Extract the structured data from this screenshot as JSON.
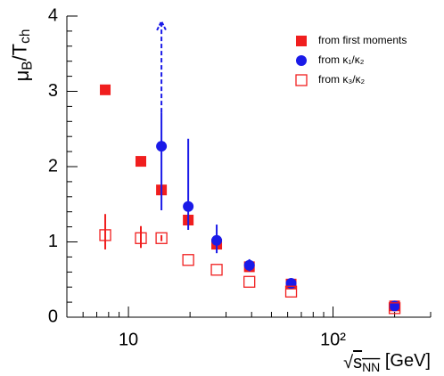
{
  "chart_data": {
    "type": "scatter",
    "ylabel": [
      {
        "text": "μ"
      },
      {
        "text": "B",
        "sub": true
      },
      {
        "text": "/T"
      },
      {
        "text": "ch",
        "sub": true
      }
    ],
    "xlabel": [
      {
        "text": "√"
      },
      {
        "text": "s",
        "over": true
      },
      {
        "text": "NN",
        "sub": true,
        "over": true
      },
      {
        "text": " [GeV]"
      }
    ],
    "log_x": true,
    "xlim": [
      5,
      300
    ],
    "ylim": [
      0,
      4
    ],
    "xticks": [
      10,
      {
        "value": 100,
        "label": "10²"
      }
    ],
    "xminorticks": [
      5,
      6,
      7,
      8,
      9,
      20,
      30,
      40,
      50,
      60,
      70,
      80,
      90,
      200,
      300
    ],
    "yticks": [
      0,
      1,
      2,
      3,
      4
    ],
    "yminorticks": [
      0.2,
      0.4,
      0.6,
      0.8,
      1.2,
      1.4,
      1.6,
      1.8,
      2.2,
      2.4,
      2.6,
      2.8,
      3.2,
      3.4,
      3.6,
      3.8
    ],
    "legend": "upper right",
    "series": [
      {
        "name": "from first moments",
        "color": "#f01e1e",
        "marker": "square",
        "filled": true,
        "x": [
          7.7,
          11.5,
          14.5,
          19.6,
          27,
          39,
          62.4,
          200
        ],
        "values": [
          3.02,
          2.07,
          1.69,
          1.29,
          0.97,
          0.67,
          0.44,
          0.15
        ]
      },
      {
        "name": "from κ₁/κ₂",
        "color": "#1a1ae8",
        "marker": "circle",
        "filled": true,
        "x": [
          14.5,
          19.6,
          27,
          39,
          62.4,
          200
        ],
        "values": [
          2.27,
          1.47,
          1.02,
          0.69,
          0.45,
          0.15
        ],
        "err_low": [
          1.42,
          1.16,
          0.85,
          0.61,
          0.39,
          0.12
        ],
        "err_high": [
          2.72,
          2.37,
          1.23,
          0.77,
          0.51,
          0.18
        ],
        "arrow": {
          "x": 14.5,
          "from": 2.72,
          "to": 3.93
        }
      },
      {
        "name": "from κ₃/κ₂",
        "color": "#f01e1e",
        "marker": "square",
        "filled": false,
        "x": [
          7.7,
          11.5,
          14.5,
          19.6,
          27,
          39,
          62.4,
          200
        ],
        "values": [
          1.09,
          1.05,
          1.05,
          0.76,
          0.63,
          0.47,
          0.34,
          0.12
        ],
        "err_low": [
          0.9,
          0.92,
          1.01,
          null,
          null,
          null,
          null,
          null
        ],
        "err_high": [
          1.37,
          1.21,
          1.09,
          null,
          null,
          null,
          null,
          null
        ]
      }
    ]
  }
}
